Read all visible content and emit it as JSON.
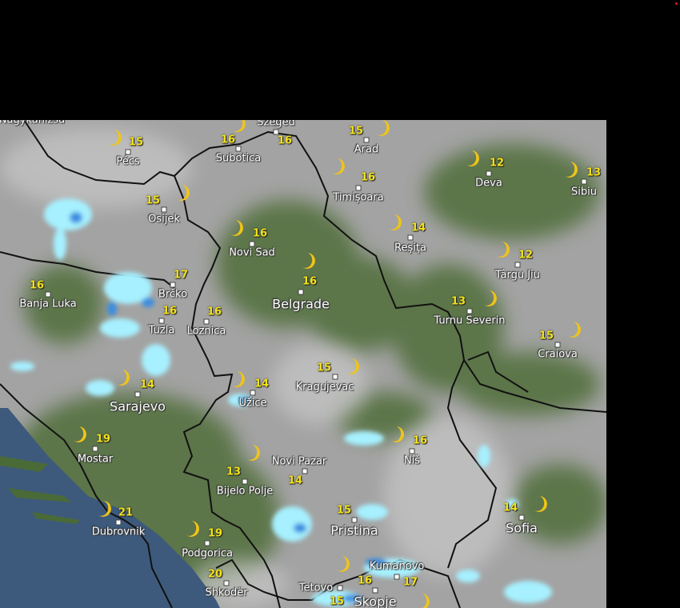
{
  "map": {
    "layer": "weather-night-clouds-radar",
    "colors": {
      "land_green": "#4f6e3a",
      "cloud_gray": "#a8a8a8",
      "sea": "#3d5a7c",
      "rain_light": "#a6f0ff",
      "rain_moderate": "#3a8ee0",
      "temp": "#f2e21a",
      "border": "#111111"
    },
    "condition_icon": "crescent-moon-icon",
    "cities": [
      {
        "name": "Nagykanizsa",
        "temp": null
      },
      {
        "name": "Pécs",
        "temp": "15"
      },
      {
        "name": "Szeged",
        "temp": "16"
      },
      {
        "name": "Subotica",
        "temp": "16"
      },
      {
        "name": "Arad",
        "temp": "15"
      },
      {
        "name": "Timişoara",
        "temp": "16"
      },
      {
        "name": "Deva",
        "temp": "12"
      },
      {
        "name": "Sibiu",
        "temp": "13"
      },
      {
        "name": "Osijek",
        "temp": "15"
      },
      {
        "name": "Novi Sad",
        "temp": "16"
      },
      {
        "name": "Reşiţa",
        "temp": "14"
      },
      {
        "name": "Târgu Jiu",
        "temp": "12"
      },
      {
        "name": "Banja Luka",
        "temp": "16"
      },
      {
        "name": "Brčko",
        "temp": "17"
      },
      {
        "name": "Belgrade",
        "temp": "16"
      },
      {
        "name": "Tuzla",
        "temp": "16"
      },
      {
        "name": "Loznica",
        "temp": "16"
      },
      {
        "name": "Turnu Severin",
        "temp": "13"
      },
      {
        "name": "Craiova",
        "temp": "15"
      },
      {
        "name": "Sarajevo",
        "temp": "14"
      },
      {
        "name": "Užice",
        "temp": "14"
      },
      {
        "name": "Kragujevac",
        "temp": "15"
      },
      {
        "name": "Mostar",
        "temp": "19"
      },
      {
        "name": "Niš",
        "temp": "16"
      },
      {
        "name": "Novi Pazar",
        "temp": "14"
      },
      {
        "name": "Bijelo Polje",
        "temp": "13"
      },
      {
        "name": "Dubrovnik",
        "temp": "21"
      },
      {
        "name": "Pristina",
        "temp": "15"
      },
      {
        "name": "Sofia",
        "temp": "14"
      },
      {
        "name": "Podgorica",
        "temp": "19"
      },
      {
        "name": "Shkodër",
        "temp": "20"
      },
      {
        "name": "Kumanovo",
        "temp": "17"
      },
      {
        "name": "Tetovo",
        "temp": "15"
      },
      {
        "name": "Skopje",
        "temp": "16"
      }
    ]
  }
}
